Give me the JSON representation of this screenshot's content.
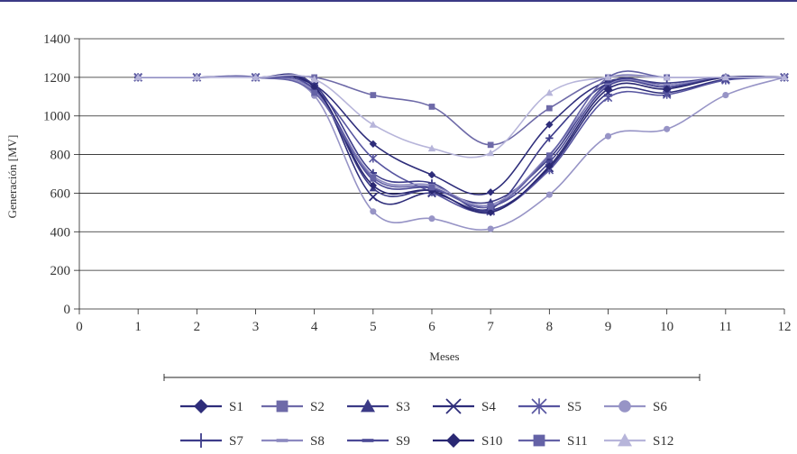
{
  "chart_data": {
    "type": "line",
    "xlabel": "Meses",
    "ylabel": "Generación [MV]",
    "xlim": [
      0,
      12
    ],
    "ylim": [
      0,
      1400
    ],
    "xticks": [
      0,
      1,
      2,
      3,
      4,
      5,
      6,
      7,
      8,
      9,
      10,
      11,
      12
    ],
    "yticks": [
      0,
      200,
      400,
      600,
      800,
      1000,
      1200,
      1400
    ],
    "grid": "horizontal",
    "legend_position": "bottom",
    "x": [
      1,
      2,
      3,
      4,
      5,
      6,
      7,
      8,
      9,
      10,
      11,
      12
    ],
    "series": [
      {
        "name": "S1",
        "marker": "diamond",
        "color": "#2e2d7a",
        "values": [
          1200,
          1200,
          1200,
          1160,
          855,
          695,
          605,
          955,
          1180,
          1150,
          1200,
          1200
        ]
      },
      {
        "name": "S2",
        "marker": "square",
        "color": "#6e6aa8",
        "values": [
          1200,
          1200,
          1200,
          1200,
          1108,
          1048,
          850,
          1040,
          1200,
          1200,
          1200,
          1200
        ]
      },
      {
        "name": "S3",
        "marker": "triangle",
        "color": "#3b3a86",
        "values": [
          1200,
          1200,
          1200,
          1150,
          625,
          615,
          555,
          780,
          1170,
          1160,
          1200,
          1200
        ]
      },
      {
        "name": "S4",
        "marker": "x",
        "color": "#2e2d7a",
        "values": [
          1200,
          1200,
          1200,
          1155,
          580,
          600,
          510,
          730,
          1120,
          1120,
          1190,
          1200
        ]
      },
      {
        "name": "S5",
        "marker": "asterisk",
        "color": "#5755a0",
        "values": [
          1200,
          1200,
          1200,
          1140,
          780,
          605,
          505,
          720,
          1095,
          1110,
          1185,
          1200
        ]
      },
      {
        "name": "S6",
        "marker": "circle",
        "color": "#9794c6",
        "values": [
          1200,
          1200,
          1200,
          1105,
          505,
          468,
          415,
          592,
          895,
          932,
          1108,
          1200
        ]
      },
      {
        "name": "S7",
        "marker": "plus",
        "color": "#3d3c8a",
        "values": [
          1200,
          1200,
          1200,
          1160,
          705,
          652,
          520,
          885,
          1170,
          1170,
          1200,
          1200
        ]
      },
      {
        "name": "S8",
        "marker": "dash",
        "color": "#8c89c0",
        "values": [
          1200,
          1200,
          1200,
          1130,
          690,
          640,
          540,
          800,
          1160,
          1160,
          1200,
          1200
        ]
      },
      {
        "name": "S9",
        "marker": "dash",
        "color": "#4b4996",
        "values": [
          1200,
          1200,
          1200,
          1140,
          668,
          625,
          530,
          760,
          1155,
          1150,
          1200,
          1200
        ]
      },
      {
        "name": "S10",
        "marker": "diamond",
        "color": "#2a2873",
        "values": [
          1200,
          1200,
          1200,
          1150,
          640,
          612,
          500,
          740,
          1140,
          1140,
          1200,
          1200
        ]
      },
      {
        "name": "S11",
        "marker": "square",
        "color": "#6462a6",
        "values": [
          1200,
          1200,
          1200,
          1120,
          680,
          630,
          530,
          795,
          1200,
          1200,
          1200,
          1200
        ]
      },
      {
        "name": "S12",
        "marker": "triangle",
        "color": "#b7b5da",
        "values": [
          1200,
          1200,
          1200,
          1190,
          955,
          832,
          808,
          1120,
          1200,
          1200,
          1200,
          1200
        ]
      }
    ]
  }
}
